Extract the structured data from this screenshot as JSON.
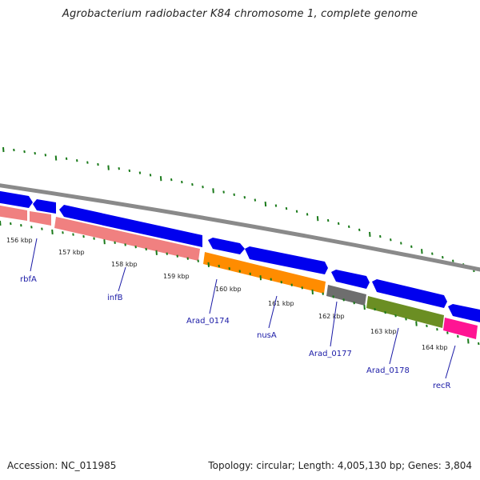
{
  "title": "Agrobacterium radiobacter K84 chromosome 1, complete genome",
  "footer": {
    "accession": "Accession: NC_011985",
    "summary": "Topology: circular; Length: 4,005,130 bp; Genes: 3,804"
  },
  "scale": {
    "ticks": [
      "156 kbp",
      "157 kbp",
      "158 kbp",
      "159 kbp",
      "160 kbp",
      "161 kbp",
      "162 kbp",
      "163 kbp",
      "164 kbp"
    ]
  },
  "genes": {
    "labels": [
      "rbfA",
      "infB",
      "Arad_0174",
      "nusA",
      "Arad_0177",
      "Arad_0178",
      "recR"
    ]
  },
  "colors": {
    "backbone": "#8a8a8a",
    "cds": "#0000ee",
    "salmon": "#f08080",
    "orange": "#ff8c00",
    "gray": "#6e6e6e",
    "olive": "#6b8e23",
    "magenta": "#ff1493",
    "tick": "#1a7a1a",
    "label": "#1a1aa6"
  }
}
